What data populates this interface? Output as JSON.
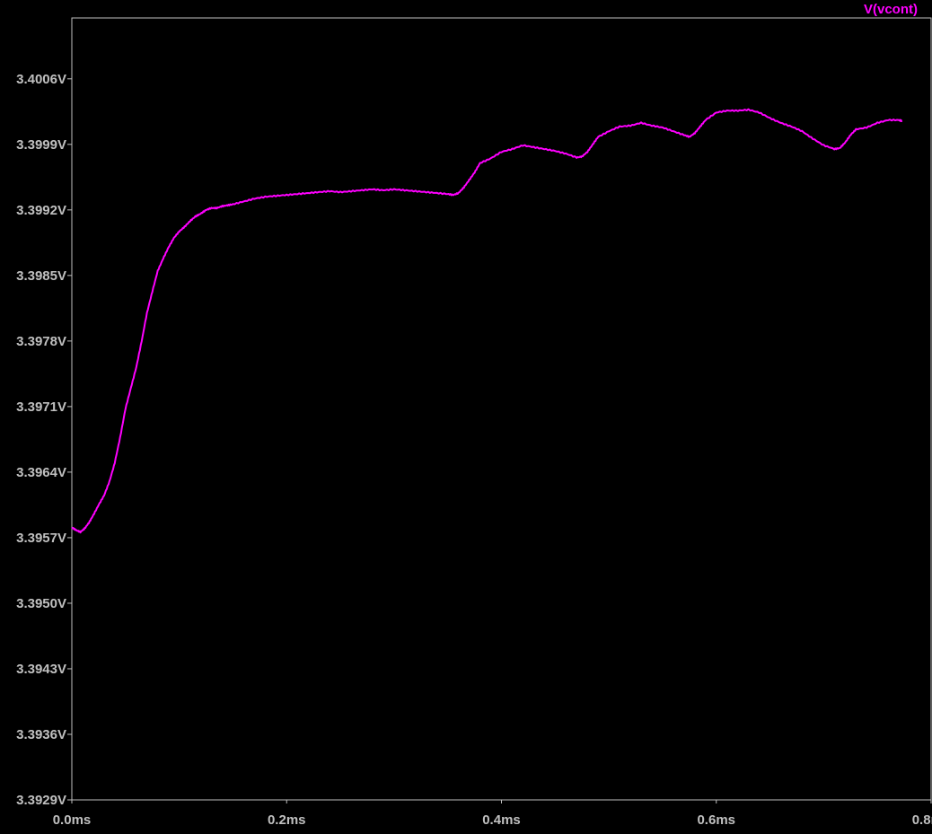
{
  "chart_data": {
    "type": "line",
    "title": "",
    "xlabel": "",
    "ylabel": "",
    "xlim": [
      0.0,
      0.8
    ],
    "ylim": [
      3.3929,
      3.40125
    ],
    "x_ticks": [
      {
        "value": 0.0,
        "label": "0.0ms"
      },
      {
        "value": 0.2,
        "label": "0.2ms"
      },
      {
        "value": 0.4,
        "label": "0.4ms"
      },
      {
        "value": 0.6,
        "label": "0.6ms"
      },
      {
        "value": 0.8,
        "label": "0.8ms"
      }
    ],
    "y_ticks": [
      {
        "value": 3.4006,
        "label": "3.4006V"
      },
      {
        "value": 3.3999,
        "label": "3.3999V"
      },
      {
        "value": 3.3992,
        "label": "3.3992V"
      },
      {
        "value": 3.3985,
        "label": "3.3985V"
      },
      {
        "value": 3.3978,
        "label": "3.3978V"
      },
      {
        "value": 3.3971,
        "label": "3.3971V"
      },
      {
        "value": 3.3964,
        "label": "3.3964V"
      },
      {
        "value": 3.3957,
        "label": "3.3957V"
      },
      {
        "value": 3.395,
        "label": "3.3950V"
      },
      {
        "value": 3.3943,
        "label": "3.3943V"
      },
      {
        "value": 3.3936,
        "label": "3.3936V"
      },
      {
        "value": 3.3929,
        "label": "3.3929V"
      }
    ],
    "grid": false,
    "legend_position": "top-right",
    "background_color": "#000000",
    "axis_color": "#c0c0c0",
    "series": [
      {
        "name": "V(vcont)",
        "color": "#ff00ff",
        "x": [
          0.0,
          0.004,
          0.008,
          0.012,
          0.016,
          0.02,
          0.025,
          0.03,
          0.035,
          0.04,
          0.045,
          0.05,
          0.055,
          0.06,
          0.065,
          0.07,
          0.075,
          0.08,
          0.085,
          0.09,
          0.095,
          0.1,
          0.105,
          0.11,
          0.115,
          0.12,
          0.125,
          0.13,
          0.135,
          0.14,
          0.145,
          0.15,
          0.16,
          0.17,
          0.18,
          0.19,
          0.2,
          0.21,
          0.22,
          0.23,
          0.24,
          0.25,
          0.26,
          0.27,
          0.28,
          0.29,
          0.3,
          0.31,
          0.32,
          0.33,
          0.34,
          0.35,
          0.355,
          0.36,
          0.365,
          0.37,
          0.375,
          0.38,
          0.39,
          0.4,
          0.41,
          0.42,
          0.43,
          0.44,
          0.45,
          0.46,
          0.47,
          0.475,
          0.48,
          0.485,
          0.49,
          0.5,
          0.51,
          0.52,
          0.53,
          0.54,
          0.55,
          0.56,
          0.57,
          0.575,
          0.58,
          0.585,
          0.59,
          0.6,
          0.61,
          0.62,
          0.63,
          0.64,
          0.65,
          0.66,
          0.67,
          0.68,
          0.69,
          0.7,
          0.71,
          0.715,
          0.72,
          0.725,
          0.73,
          0.74,
          0.75,
          0.76,
          0.77,
          0.773
        ],
        "y": [
          3.39581,
          3.39578,
          3.39576,
          3.3958,
          3.39586,
          3.39594,
          3.39605,
          3.39615,
          3.3963,
          3.3965,
          3.39677,
          3.39708,
          3.3973,
          3.39752,
          3.3978,
          3.3981,
          3.39833,
          3.39855,
          3.39868,
          3.3988,
          3.3989,
          3.39897,
          3.39902,
          3.39908,
          3.39913,
          3.39916,
          3.3992,
          3.39922,
          3.39922,
          3.39924,
          3.39925,
          3.39926,
          3.39929,
          3.39932,
          3.39934,
          3.39935,
          3.39936,
          3.39937,
          3.39938,
          3.39939,
          3.3994,
          3.39939,
          3.3994,
          3.39941,
          3.39942,
          3.39941,
          3.39942,
          3.39941,
          3.3994,
          3.39939,
          3.39938,
          3.39937,
          3.39936,
          3.39938,
          3.39944,
          3.39952,
          3.3996,
          3.3997,
          3.39975,
          3.39982,
          3.39985,
          3.39989,
          3.39987,
          3.39985,
          3.39983,
          3.3998,
          3.39976,
          3.39977,
          3.39982,
          3.3999,
          3.39998,
          3.40004,
          3.40009,
          3.4001,
          3.40013,
          3.4001,
          3.40008,
          3.40004,
          3.4,
          3.39998,
          3.40002,
          3.40009,
          3.40016,
          3.40024,
          3.40026,
          3.40026,
          3.40027,
          3.40024,
          3.40018,
          3.40013,
          3.40009,
          3.40004,
          3.39996,
          3.39989,
          3.39985,
          3.39986,
          3.39992,
          3.4,
          3.40006,
          3.40008,
          3.40013,
          3.40016,
          3.40016,
          3.40015
        ]
      }
    ]
  }
}
